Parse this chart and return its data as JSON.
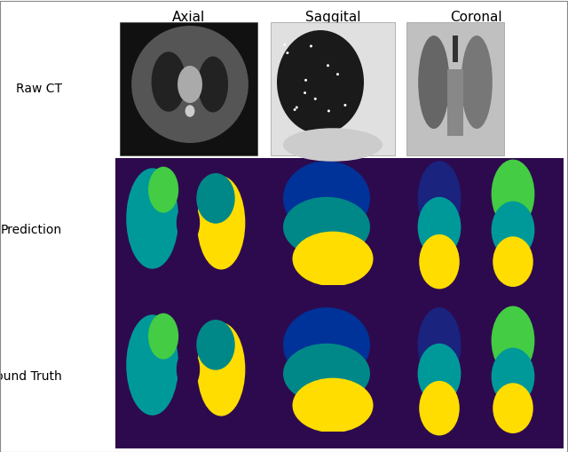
{
  "title_axial": "Axial",
  "title_saggital": "Saggital",
  "title_coronal": "Coronal",
  "label_rawct": "Raw CT",
  "label_prediction": "Prediction",
  "label_groundtruth": "Ground Truth",
  "bg_color_bottom": "#2d0a4e",
  "fig_width": 6.4,
  "fig_height": 5.09,
  "dpi": 100,
  "colors": {
    "teal_upper": "#009999",
    "teal_lower": "#008080",
    "green": "#66cc33",
    "yellow": "#ffdd00",
    "blue_dark": "#003399",
    "navy": "#1a237e",
    "cyan_teal": "#00aaaa"
  }
}
